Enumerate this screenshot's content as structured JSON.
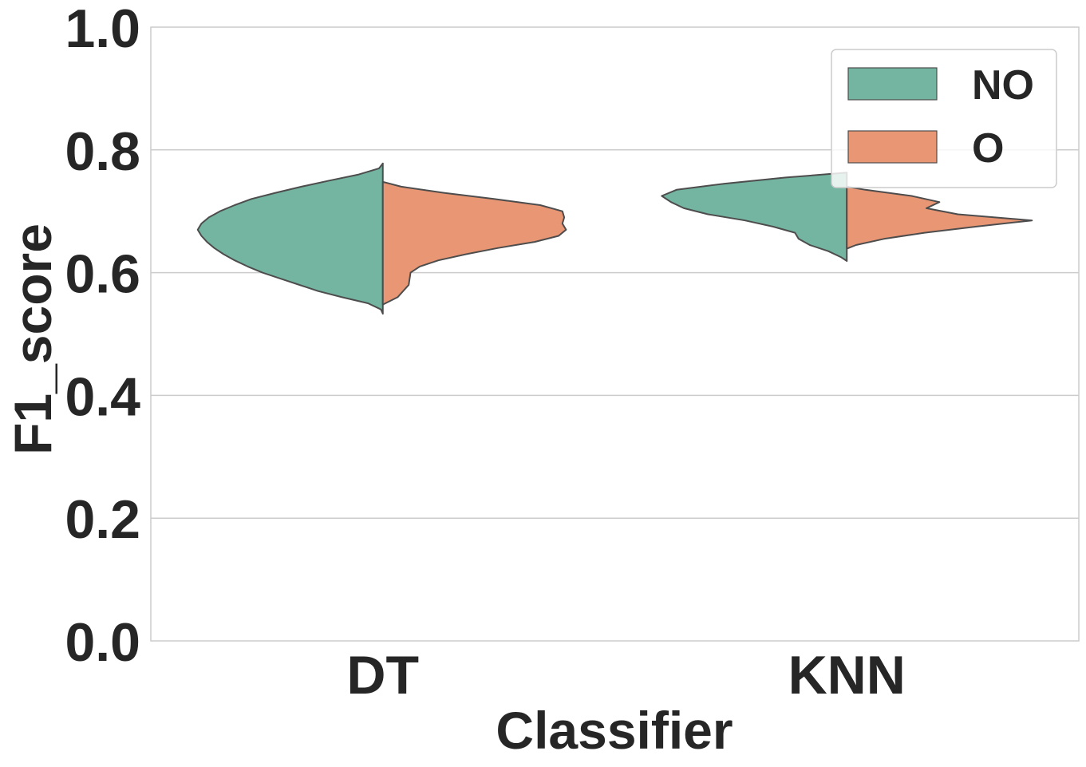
{
  "chart_data": {
    "type": "violin",
    "split": true,
    "xlabel": "Classifier",
    "ylabel": "F1_score",
    "ylim": [
      0.0,
      1.0
    ],
    "yticks": [
      "0.0",
      "0.2",
      "0.4",
      "0.6",
      "0.8",
      "1.0"
    ],
    "categories": [
      "DT",
      "KNN"
    ],
    "grid": true,
    "legend": {
      "placement": "top-right"
    },
    "series": [
      {
        "name": "NO",
        "color": "#73b5a1",
        "side": "left",
        "distributions": [
          {
            "category": "DT",
            "profile": [
              [
                0.533,
                0.0
              ],
              [
                0.54,
                0.01
              ],
              [
                0.55,
                0.08
              ],
              [
                0.56,
                0.22
              ],
              [
                0.57,
                0.35
              ],
              [
                0.58,
                0.45
              ],
              [
                0.59,
                0.55
              ],
              [
                0.6,
                0.65
              ],
              [
                0.61,
                0.73
              ],
              [
                0.62,
                0.8
              ],
              [
                0.63,
                0.86
              ],
              [
                0.64,
                0.91
              ],
              [
                0.65,
                0.95
              ],
              [
                0.66,
                0.98
              ],
              [
                0.67,
                1.0
              ],
              [
                0.68,
                0.98
              ],
              [
                0.69,
                0.94
              ],
              [
                0.7,
                0.88
              ],
              [
                0.71,
                0.8
              ],
              [
                0.72,
                0.71
              ],
              [
                0.73,
                0.58
              ],
              [
                0.74,
                0.44
              ],
              [
                0.75,
                0.29
              ],
              [
                0.76,
                0.13
              ],
              [
                0.77,
                0.02
              ],
              [
                0.778,
                0.0
              ]
            ]
          },
          {
            "category": "KNN",
            "profile": [
              [
                0.619,
                0.0
              ],
              [
                0.625,
                0.03
              ],
              [
                0.635,
                0.1
              ],
              [
                0.645,
                0.2
              ],
              [
                0.655,
                0.26
              ],
              [
                0.665,
                0.28
              ],
              [
                0.675,
                0.4
              ],
              [
                0.685,
                0.55
              ],
              [
                0.695,
                0.75
              ],
              [
                0.705,
                0.88
              ],
              [
                0.715,
                0.95
              ],
              [
                0.725,
                1.0
              ],
              [
                0.735,
                0.92
              ],
              [
                0.745,
                0.66
              ],
              [
                0.755,
                0.33
              ],
              [
                0.763,
                0.0
              ]
            ]
          }
        ]
      },
      {
        "name": "O",
        "color": "#e99674",
        "side": "right",
        "distributions": [
          {
            "category": "DT",
            "profile": [
              [
                0.548,
                0.0
              ],
              [
                0.56,
                0.08
              ],
              [
                0.58,
                0.14
              ],
              [
                0.6,
                0.15
              ],
              [
                0.61,
                0.2
              ],
              [
                0.62,
                0.3
              ],
              [
                0.63,
                0.45
              ],
              [
                0.64,
                0.62
              ],
              [
                0.65,
                0.82
              ],
              [
                0.66,
                0.95
              ],
              [
                0.67,
                0.99
              ],
              [
                0.68,
                0.97
              ],
              [
                0.69,
                0.98
              ],
              [
                0.7,
                0.97
              ],
              [
                0.71,
                0.85
              ],
              [
                0.72,
                0.6
              ],
              [
                0.73,
                0.33
              ],
              [
                0.74,
                0.1
              ],
              [
                0.748,
                0.0
              ]
            ]
          },
          {
            "category": "KNN",
            "profile": [
              [
                0.639,
                0.0
              ],
              [
                0.645,
                0.05
              ],
              [
                0.655,
                0.2
              ],
              [
                0.665,
                0.42
              ],
              [
                0.675,
                0.7
              ],
              [
                0.685,
                1.0
              ],
              [
                0.695,
                0.6
              ],
              [
                0.705,
                0.43
              ],
              [
                0.715,
                0.5
              ],
              [
                0.725,
                0.35
              ],
              [
                0.735,
                0.1
              ],
              [
                0.74,
                0.0
              ]
            ]
          }
        ]
      }
    ]
  }
}
